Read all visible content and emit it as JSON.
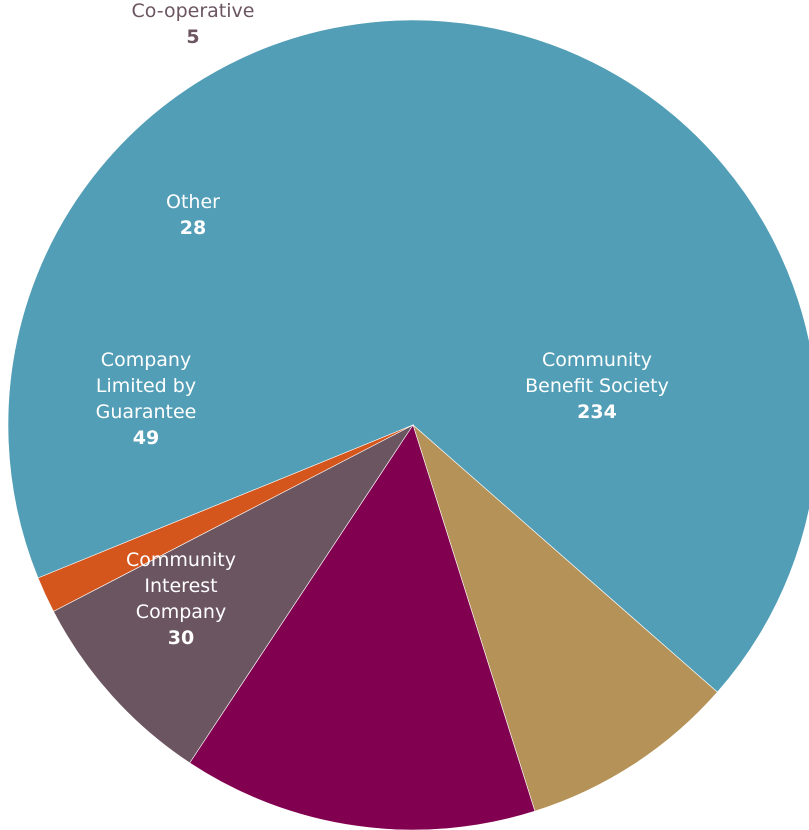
{
  "chart_data": {
    "type": "pie",
    "title": "",
    "slices": [
      {
        "label": "Community Benefit Society",
        "label_lines": [
          "Community",
          "Benefit Society"
        ],
        "value": 234,
        "color": "#529eb6",
        "label_color": "#ffffff"
      },
      {
        "label": "Community Interest Company",
        "label_lines": [
          "Community",
          "Interest",
          "Company"
        ],
        "value": 30,
        "color": "#b59257",
        "label_color": "#ffffff"
      },
      {
        "label": "Company Limited by Guarantee",
        "label_lines": [
          "Company",
          "Limited by",
          "Guarantee"
        ],
        "value": 49,
        "color": "#820050",
        "label_color": "#ffffff"
      },
      {
        "label": "Other",
        "label_lines": [
          "Other"
        ],
        "value": 28,
        "color": "#6b5560",
        "label_color": "#ffffff"
      },
      {
        "label": "Co-operative",
        "label_lines": [
          "Co-operative"
        ],
        "value": 5,
        "color": "#d4561d",
        "label_color": "#6b5560"
      }
    ]
  }
}
